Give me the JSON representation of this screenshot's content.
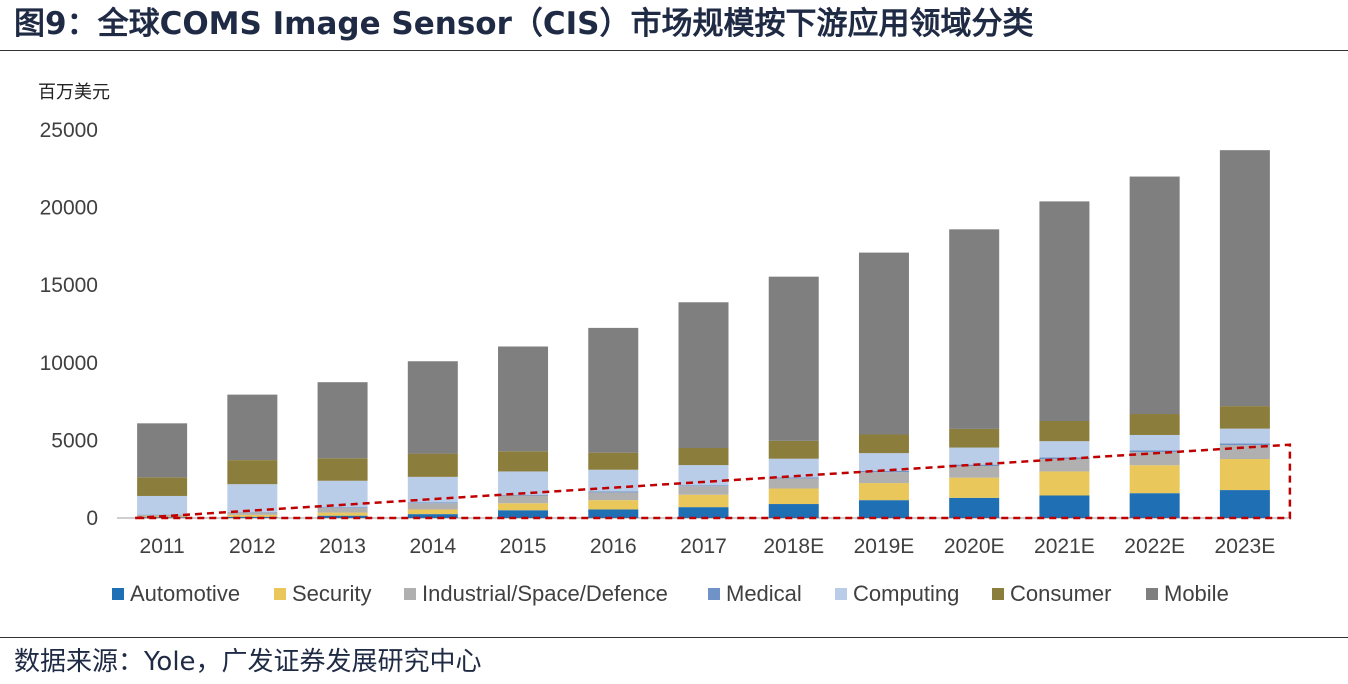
{
  "figure": {
    "title": "图9：全球COMS Image Sensor（CIS）市场规模按下游应用领域分类",
    "source": "数据来源：Yole，广发证券发展研究中心"
  },
  "chart_data": {
    "type": "bar",
    "stacked": true,
    "title": "图9：全球COMS Image Sensor（CIS）市场规模按下游应用领域分类",
    "ylabel": "百万美元",
    "xlabel": "",
    "ylim": [
      0,
      25000
    ],
    "yticks": [
      0,
      5000,
      10000,
      15000,
      20000,
      25000
    ],
    "categories": [
      "2011",
      "2012",
      "2013",
      "2014",
      "2015",
      "2016",
      "2017",
      "2018E",
      "2019E",
      "2020E",
      "2021E",
      "2022E",
      "2023E"
    ],
    "series": [
      {
        "name": "Automotive",
        "color": "#1f6fb4",
        "values": [
          50,
          80,
          150,
          250,
          500,
          550,
          700,
          900,
          1150,
          1300,
          1450,
          1600,
          1800
        ]
      },
      {
        "name": "Security",
        "color": "#e9c75a",
        "values": [
          50,
          120,
          200,
          300,
          450,
          600,
          800,
          1000,
          1100,
          1300,
          1550,
          1800,
          2000
        ]
      },
      {
        "name": "Industrial/Space/Defence",
        "color": "#b0b0b0",
        "values": [
          100,
          150,
          300,
          400,
          500,
          500,
          550,
          650,
          700,
          750,
          800,
          850,
          900
        ]
      },
      {
        "name": "Medical",
        "color": "#6f93c6",
        "values": [
          20,
          30,
          50,
          50,
          50,
          60,
          60,
          70,
          80,
          90,
          100,
          100,
          110
        ]
      },
      {
        "name": "Computing",
        "color": "#b9cde8",
        "values": [
          1200,
          1800,
          1700,
          1650,
          1500,
          1400,
          1300,
          1200,
          1150,
          1100,
          1050,
          1000,
          950
        ]
      },
      {
        "name": "Consumer",
        "color": "#8b7d3c",
        "values": [
          1200,
          1550,
          1450,
          1500,
          1300,
          1100,
          1100,
          1150,
          1200,
          1200,
          1300,
          1350,
          1450
        ]
      },
      {
        "name": "Mobile",
        "color": "#7f7f7f",
        "values": [
          3480,
          4220,
          4900,
          5950,
          6750,
          8040,
          9390,
          10580,
          11720,
          12860,
          14150,
          15300,
          16490
        ]
      }
    ],
    "annotations": [
      {
        "type": "dashed-trend-box",
        "color": "#c00000",
        "note": "highlights growth of non-mobile segments from 2011 to 2023E"
      }
    ],
    "legend": "bottom",
    "grid": false
  }
}
